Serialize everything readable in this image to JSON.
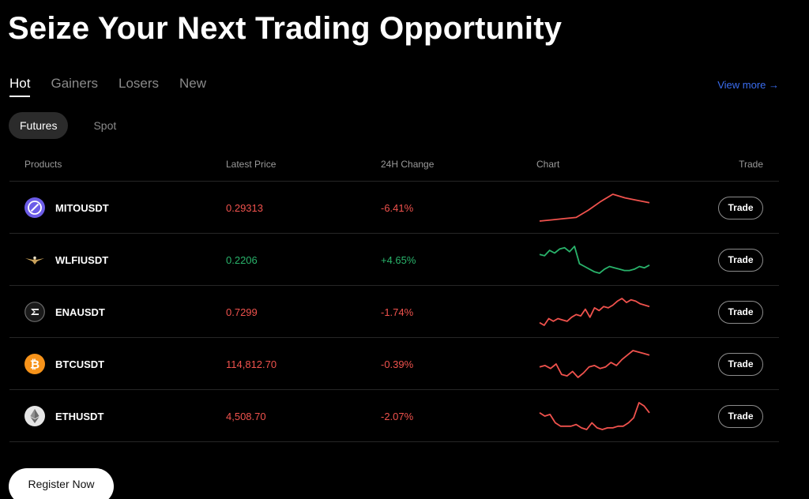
{
  "page": {
    "title": "Seize Your Next Trading Opportunity"
  },
  "tabs": [
    {
      "label": "Hot",
      "active": true
    },
    {
      "label": "Gainers",
      "active": false
    },
    {
      "label": "Losers",
      "active": false
    },
    {
      "label": "New",
      "active": false
    }
  ],
  "view_more": "View more →",
  "segments": [
    {
      "label": "Futures",
      "active": true
    },
    {
      "label": "Spot",
      "active": false
    }
  ],
  "table": {
    "headers": {
      "products": "Products",
      "price": "Latest Price",
      "change": "24H Change",
      "chart": "Chart",
      "trade": "Trade"
    },
    "rows": [
      {
        "symbol": "MITOUSDT",
        "price": "0.29313",
        "change": "-6.41%",
        "direction": "down",
        "icon": "mito-coin-icon",
        "icon_color": "#6c5ce7",
        "trade_label": "Trade",
        "spark": [
          2,
          3,
          4,
          5,
          11,
          18,
          24,
          21,
          19,
          17
        ]
      },
      {
        "symbol": "WLFIUSDT",
        "price": "0.2206",
        "change": "+4.65%",
        "direction": "up",
        "icon": "wlfi-eagle-icon",
        "icon_color": "#c8a15a",
        "trade_label": "Trade",
        "spark": [
          20,
          19,
          23,
          21,
          24,
          25,
          22,
          26,
          13,
          11,
          9,
          7,
          6,
          9,
          11,
          10,
          9,
          8,
          8,
          9,
          11,
          10,
          12
        ]
      },
      {
        "symbol": "ENAUSDT",
        "price": "0.7299",
        "change": "-1.74%",
        "direction": "down",
        "icon": "ena-coin-icon",
        "icon_color": "#444444",
        "trade_label": "Trade",
        "spark": [
          4,
          2,
          7,
          5,
          7,
          6,
          5,
          8,
          10,
          9,
          14,
          8,
          15,
          13,
          16,
          15,
          17,
          20,
          22,
          19,
          21,
          20,
          18,
          17,
          16
        ]
      },
      {
        "symbol": "BTCUSDT",
        "price": "114,812.70",
        "change": "-0.39%",
        "direction": "down",
        "icon": "bitcoin-icon",
        "icon_color": "#f7931a",
        "trade_label": "Trade",
        "spark": [
          12,
          13,
          11,
          14,
          7,
          6,
          9,
          5,
          8,
          12,
          13,
          11,
          12,
          15,
          13,
          17,
          20,
          23,
          22,
          21,
          20
        ]
      },
      {
        "symbol": "ETHUSDT",
        "price": "4,508.70",
        "change": "-2.07%",
        "direction": "down",
        "icon": "ethereum-icon",
        "icon_color": "#e0e0e0",
        "trade_label": "Trade",
        "spark": [
          12,
          10,
          11,
          6,
          4,
          4,
          4,
          5,
          3,
          2,
          6,
          3,
          2,
          3,
          3,
          4,
          4,
          6,
          9,
          18,
          16,
          12
        ]
      }
    ]
  },
  "register_label": "Register Now",
  "colors": {
    "up": "#29b36b",
    "down": "#f0524d",
    "link": "#3a6df0"
  }
}
